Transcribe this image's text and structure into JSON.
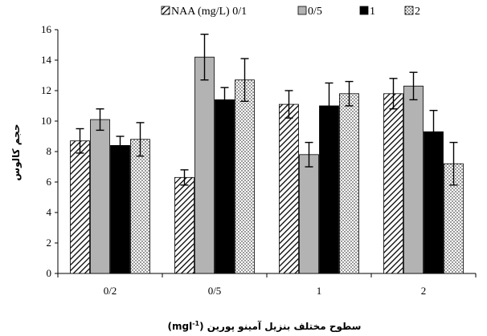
{
  "chart_data": {
    "type": "bar",
    "categories": [
      "0/2",
      "0/5",
      "1",
      "2"
    ],
    "series": [
      {
        "name": "NAA (mg/L) 0/1",
        "values": [
          8.7,
          6.3,
          11.1,
          11.8
        ],
        "errors": [
          0.8,
          0.5,
          0.9,
          1.0
        ]
      },
      {
        "name": "0/5",
        "values": [
          10.1,
          14.2,
          7.8,
          12.3
        ],
        "errors": [
          0.7,
          1.5,
          0.8,
          0.9
        ]
      },
      {
        "name": "1",
        "values": [
          8.4,
          11.4,
          11.0,
          9.3
        ],
        "errors": [
          0.6,
          0.8,
          1.5,
          1.4
        ]
      },
      {
        "name": "2",
        "values": [
          8.8,
          12.7,
          11.8,
          7.2
        ],
        "errors": [
          1.1,
          1.4,
          0.8,
          1.4
        ]
      }
    ],
    "fills": [
      "hatch",
      "#b3b3b3",
      "#000000",
      "dots"
    ],
    "ylim": [
      0,
      16
    ],
    "yticks": [
      "0",
      "2",
      "4",
      "6",
      "8",
      "10",
      "12",
      "14",
      "16"
    ],
    "ylabel": "حجم کالوس",
    "xlabel": "سطوح مختلف بنزیل آمینو پورین (mgl-1)",
    "legend_position": "top",
    "grid": false
  }
}
